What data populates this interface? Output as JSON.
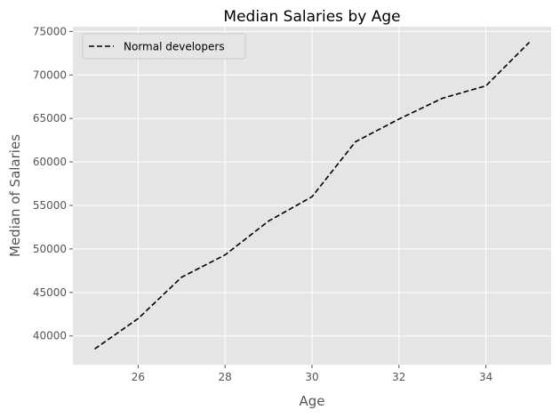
{
  "chart_data": {
    "type": "line",
    "title": "Median Salaries by Age",
    "xlabel": "Age",
    "ylabel": "Median of Salaries",
    "xlim": [
      24.5,
      35.5
    ],
    "ylim": [
      36700,
      75550
    ],
    "xticks": [
      26,
      28,
      30,
      32,
      34
    ],
    "yticks": [
      40000,
      45000,
      50000,
      55000,
      60000,
      65000,
      70000,
      75000
    ],
    "grid": true,
    "legend_position": "upper-left",
    "series": [
      {
        "name": "Normal developers",
        "color": "#000000",
        "line_style": "dashed",
        "x": [
          25,
          26,
          27,
          28,
          29,
          30,
          31,
          32,
          33,
          34,
          35
        ],
        "y": [
          38496,
          42000,
          46752,
          49320,
          53200,
          56000,
          62316,
          64928,
          67317,
          68748,
          73752
        ]
      }
    ]
  },
  "style": {
    "plot_background": "#e5e5e5",
    "grid_color": "#ffffff",
    "tick_color": "#555555"
  }
}
